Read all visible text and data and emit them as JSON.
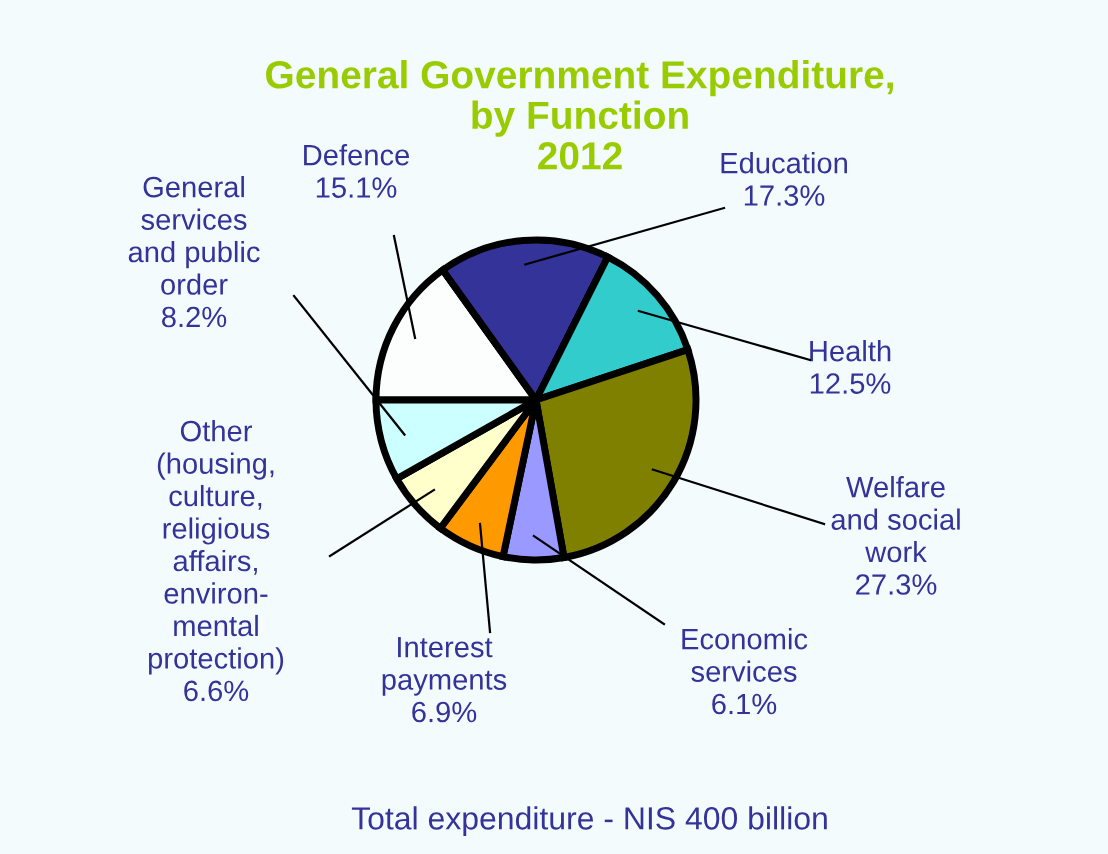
{
  "chart_data": {
    "type": "pie",
    "title": "General Government Expenditure,\nby Function\n2012",
    "categories": [
      "Defence",
      "Education",
      "Health",
      "Welfare\nand social\nwork",
      "Economic\nservices",
      "Interest\npayments",
      "Other\n(housing,\nculture,\nreligious\naffairs,\nenviron-\nmental\nprotection)",
      "General\nservices\nand public\norder"
    ],
    "values": [
      15.1,
      17.3,
      12.5,
      27.3,
      6.1,
      6.9,
      6.6,
      8.2
    ],
    "value_labels": [
      "15.1%",
      "17.3%",
      "12.5%",
      "27.3%",
      "6.1%",
      "6.9%",
      "6.6%",
      "8.2%"
    ],
    "colors": [
      "#fcfdfd",
      "#333399",
      "#33cccc",
      "#808000",
      "#9999ff",
      "#ff9900",
      "#ffffcc",
      "#ccffff"
    ],
    "annotations": [
      "Total expenditure - NIS 400 billion"
    ],
    "legend": false
  }
}
